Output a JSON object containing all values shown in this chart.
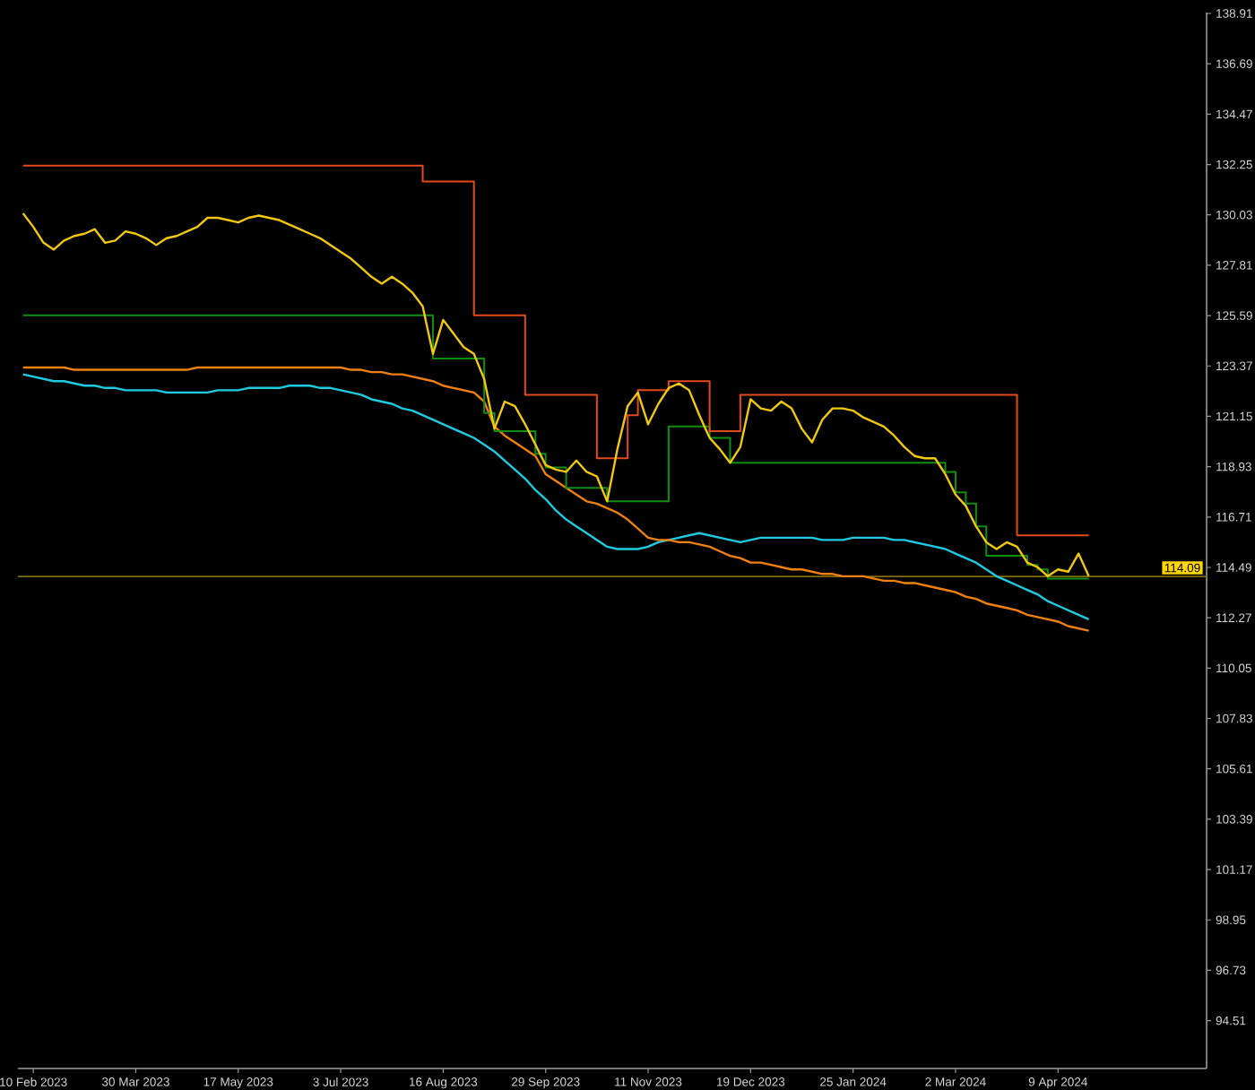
{
  "chart_data": {
    "type": "line",
    "categories": [
      null,
      "10 Feb 2023",
      null,
      null,
      null,
      null,
      null,
      null,
      null,
      null,
      null,
      "30 Mar 2023",
      null,
      null,
      null,
      null,
      null,
      null,
      null,
      null,
      null,
      "17 May 2023",
      null,
      null,
      null,
      null,
      null,
      null,
      null,
      null,
      null,
      "3 Jul 2023",
      null,
      null,
      null,
      null,
      null,
      null,
      null,
      null,
      null,
      "16 Aug 2023",
      null,
      null,
      null,
      null,
      null,
      null,
      null,
      null,
      null,
      "29 Sep 2023",
      null,
      null,
      null,
      null,
      null,
      null,
      null,
      null,
      null,
      "11 Nov 2023",
      null,
      null,
      null,
      null,
      null,
      null,
      null,
      null,
      null,
      "19 Dec 2023",
      null,
      null,
      null,
      null,
      null,
      null,
      null,
      null,
      null,
      "25 Jan 2024",
      null,
      null,
      null,
      null,
      null,
      null,
      null,
      null,
      null,
      "2 Mar 2024",
      null,
      null,
      null,
      null,
      null,
      null,
      null,
      null,
      null,
      "9 Apr 2024",
      null,
      null,
      null,
      null,
      null,
      null,
      null,
      null,
      null,
      null,
      null,
      null,
      null,
      null
    ],
    "ylim": [
      92.4,
      138.95
    ],
    "yticks": [
      94.51,
      96.73,
      98.95,
      101.17,
      103.39,
      105.61,
      107.83,
      110.05,
      112.27,
      114.49,
      116.71,
      118.93,
      121.15,
      123.37,
      125.59,
      127.81,
      130.03,
      132.25,
      134.47,
      136.69,
      138.91
    ],
    "ref_lines": [
      {
        "axis": "y",
        "value": 114.09,
        "label": "114.09",
        "color": "#806c00"
      }
    ],
    "series": [
      {
        "color": "#1ecbe1",
        "values": [
          123.0,
          122.9,
          122.8,
          122.7,
          122.7,
          122.6,
          122.5,
          122.5,
          122.4,
          122.4,
          122.3,
          122.3,
          122.3,
          122.3,
          122.2,
          122.2,
          122.2,
          122.2,
          122.2,
          122.3,
          122.3,
          122.3,
          122.4,
          122.4,
          122.4,
          122.4,
          122.5,
          122.5,
          122.5,
          122.4,
          122.4,
          122.3,
          122.2,
          122.1,
          121.9,
          121.8,
          121.7,
          121.5,
          121.4,
          121.2,
          121.0,
          120.8,
          120.6,
          120.4,
          120.2,
          119.9,
          119.6,
          119.2,
          118.8,
          118.4,
          117.9,
          117.5,
          117.0,
          116.6,
          116.3,
          116.0,
          115.7,
          115.4,
          115.3,
          115.3,
          115.3,
          115.4,
          115.6,
          115.7,
          115.8,
          115.9,
          116.0,
          115.9,
          115.8,
          115.7,
          115.6,
          115.7,
          115.8,
          115.8,
          115.8,
          115.8,
          115.8,
          115.8,
          115.7,
          115.7,
          115.7,
          115.8,
          115.8,
          115.8,
          115.8,
          115.7,
          115.7,
          115.6,
          115.5,
          115.4,
          115.3,
          115.1,
          114.9,
          114.7,
          114.4,
          114.1,
          113.9,
          113.7,
          113.5,
          113.3,
          113.0,
          112.8,
          112.6,
          112.4,
          112.2,
          null,
          null,
          null,
          null,
          null,
          null,
          null,
          null,
          null,
          null,
          null
        ]
      },
      {
        "color": "#f08010",
        "values": [
          123.3,
          123.3,
          123.3,
          123.3,
          123.3,
          123.2,
          123.2,
          123.2,
          123.2,
          123.2,
          123.2,
          123.2,
          123.2,
          123.2,
          123.2,
          123.2,
          123.2,
          123.3,
          123.3,
          123.3,
          123.3,
          123.3,
          123.3,
          123.3,
          123.3,
          123.3,
          123.3,
          123.3,
          123.3,
          123.3,
          123.3,
          123.3,
          123.2,
          123.2,
          123.1,
          123.1,
          123.0,
          123.0,
          122.9,
          122.8,
          122.7,
          122.5,
          122.4,
          122.3,
          122.2,
          121.8,
          120.7,
          120.3,
          120.0,
          119.7,
          119.4,
          118.6,
          118.3,
          118.0,
          117.7,
          117.4,
          117.3,
          117.1,
          116.9,
          116.6,
          116.2,
          115.8,
          115.7,
          115.7,
          115.6,
          115.6,
          115.5,
          115.4,
          115.2,
          115.0,
          114.9,
          114.7,
          114.7,
          114.6,
          114.5,
          114.4,
          114.4,
          114.3,
          114.2,
          114.2,
          114.1,
          114.1,
          114.1,
          114.0,
          113.9,
          113.9,
          113.8,
          113.8,
          113.7,
          113.6,
          113.5,
          113.4,
          113.2,
          113.1,
          112.9,
          112.8,
          112.7,
          112.6,
          112.4,
          112.3,
          112.2,
          112.1,
          111.9,
          111.8,
          111.7,
          null,
          null,
          null,
          null,
          null,
          null,
          null,
          null,
          null,
          null,
          null
        ]
      },
      {
        "type": "step",
        "color": "#0f8f0f",
        "values": [
          125.6,
          125.6,
          125.6,
          125.6,
          125.6,
          125.6,
          125.6,
          125.6,
          125.6,
          125.6,
          125.6,
          125.6,
          125.6,
          125.6,
          125.6,
          125.6,
          125.6,
          125.6,
          125.6,
          125.6,
          125.6,
          125.6,
          125.6,
          125.6,
          125.6,
          125.6,
          125.6,
          125.6,
          125.6,
          125.6,
          125.6,
          125.6,
          125.6,
          125.6,
          125.6,
          125.6,
          125.6,
          125.6,
          125.6,
          125.6,
          123.7,
          123.7,
          123.7,
          123.7,
          123.7,
          121.3,
          120.5,
          120.5,
          120.5,
          120.5,
          119.5,
          118.9,
          118.9,
          118.0,
          118.0,
          118.0,
          118.0,
          117.4,
          117.4,
          117.4,
          117.4,
          117.4,
          117.4,
          120.7,
          120.7,
          120.7,
          120.7,
          120.2,
          120.2,
          119.1,
          119.1,
          119.1,
          119.1,
          119.1,
          119.1,
          119.1,
          119.1,
          119.1,
          119.1,
          119.1,
          119.1,
          119.1,
          119.1,
          119.1,
          119.1,
          119.1,
          119.1,
          119.1,
          119.1,
          119.1,
          118.7,
          117.8,
          117.3,
          116.3,
          115.0,
          115.0,
          115.0,
          115.0,
          114.6,
          114.4,
          114.0,
          114.0,
          114.0,
          114.0,
          114.0,
          null,
          null,
          null,
          null,
          null,
          null,
          null,
          null,
          null,
          null,
          null
        ]
      },
      {
        "type": "step",
        "color": "#e34a1a",
        "values": [
          132.2,
          132.2,
          132.2,
          132.2,
          132.2,
          132.2,
          132.2,
          132.2,
          132.2,
          132.2,
          132.2,
          132.2,
          132.2,
          132.2,
          132.2,
          132.2,
          132.2,
          132.2,
          132.2,
          132.2,
          132.2,
          132.2,
          132.2,
          132.2,
          132.2,
          132.2,
          132.2,
          132.2,
          132.2,
          132.2,
          132.2,
          132.2,
          132.2,
          132.2,
          132.2,
          132.2,
          132.2,
          132.2,
          132.2,
          131.5,
          131.5,
          131.5,
          131.5,
          131.5,
          125.6,
          125.6,
          125.6,
          125.6,
          125.6,
          122.1,
          122.1,
          122.1,
          122.1,
          122.1,
          122.1,
          122.1,
          119.3,
          119.3,
          119.3,
          121.2,
          122.3,
          122.3,
          122.3,
          122.7,
          122.7,
          122.7,
          122.7,
          120.5,
          120.5,
          120.5,
          122.1,
          122.1,
          122.1,
          122.1,
          122.1,
          122.1,
          122.1,
          122.1,
          122.1,
          122.1,
          122.1,
          122.1,
          122.1,
          122.1,
          122.1,
          122.1,
          122.1,
          122.1,
          122.1,
          122.1,
          122.1,
          122.1,
          122.1,
          122.1,
          122.1,
          122.1,
          122.1,
          115.9,
          115.9,
          115.9,
          115.9,
          115.9,
          115.9,
          115.9,
          115.9,
          null,
          null,
          null,
          null,
          null,
          null,
          null,
          null,
          null,
          null,
          null
        ]
      },
      {
        "color": "#f2c80f",
        "values": [
          130.1,
          129.5,
          128.8,
          128.5,
          128.9,
          129.1,
          129.2,
          129.4,
          128.8,
          128.9,
          129.3,
          129.2,
          129.0,
          128.7,
          129.0,
          129.1,
          129.3,
          129.5,
          129.9,
          129.9,
          129.8,
          129.7,
          129.9,
          130.0,
          129.9,
          129.8,
          129.6,
          129.4,
          129.2,
          129.0,
          128.7,
          128.4,
          128.1,
          127.7,
          127.3,
          127.0,
          127.3,
          127.0,
          126.6,
          126.0,
          123.9,
          125.4,
          124.8,
          124.2,
          123.9,
          122.8,
          120.6,
          121.8,
          121.6,
          120.8,
          119.9,
          119.0,
          118.8,
          118.7,
          119.2,
          118.7,
          118.5,
          117.4,
          119.7,
          121.6,
          122.2,
          120.8,
          121.7,
          122.4,
          122.6,
          122.3,
          121.2,
          120.2,
          119.7,
          119.1,
          119.8,
          121.9,
          121.5,
          121.4,
          121.8,
          121.5,
          120.6,
          120.0,
          121.0,
          121.5,
          121.5,
          121.4,
          121.1,
          120.9,
          120.7,
          120.3,
          119.8,
          119.4,
          119.3,
          119.3,
          118.6,
          117.7,
          117.2,
          116.3,
          115.6,
          115.3,
          115.6,
          115.4,
          114.7,
          114.5,
          114.1,
          114.4,
          114.3,
          115.1,
          114.1,
          null,
          null,
          null,
          null,
          null,
          null,
          null,
          null,
          null,
          null,
          null
        ]
      }
    ]
  }
}
